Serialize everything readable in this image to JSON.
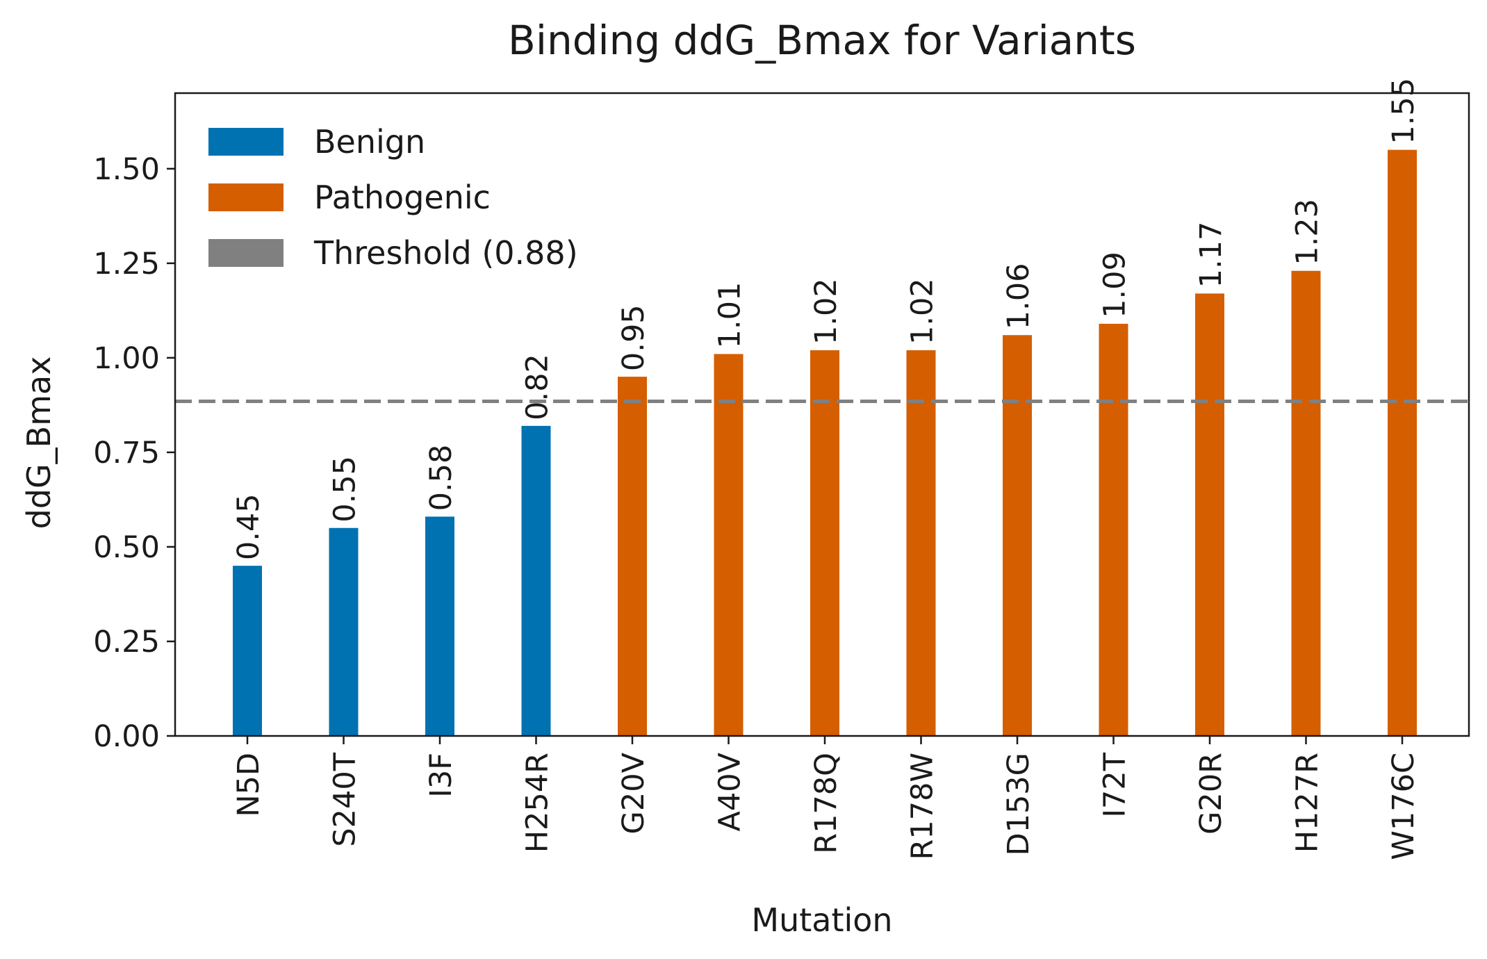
{
  "chart_data": {
    "type": "bar",
    "title": "Binding ddG_Bmax for Variants",
    "xlabel": "Mutation",
    "ylabel": "ddG_Bmax",
    "ylim": [
      0,
      1.7
    ],
    "yticks": [
      "0.00",
      "0.25",
      "0.50",
      "0.75",
      "1.00",
      "1.25",
      "1.50"
    ],
    "categories": [
      "N5D",
      "S240T",
      "I3F",
      "H254R",
      "G20V",
      "A40V",
      "R178Q",
      "R178W",
      "D153G",
      "I72T",
      "G20R",
      "H127R",
      "W176C"
    ],
    "values": [
      0.45,
      0.55,
      0.58,
      0.82,
      0.95,
      1.01,
      1.02,
      1.02,
      1.06,
      1.09,
      1.17,
      1.23,
      1.55
    ],
    "value_labels": [
      "0.45",
      "0.55",
      "0.58",
      "0.82",
      "0.95",
      "1.01",
      "1.02",
      "1.02",
      "1.06",
      "1.09",
      "1.17",
      "1.23",
      "1.55"
    ],
    "classes": [
      "Benign",
      "Benign",
      "Benign",
      "Benign",
      "Pathogenic",
      "Pathogenic",
      "Pathogenic",
      "Pathogenic",
      "Pathogenic",
      "Pathogenic",
      "Pathogenic",
      "Pathogenic",
      "Pathogenic"
    ],
    "threshold": 0.885,
    "legend": {
      "placement": "top-left",
      "entries": [
        {
          "label": "Benign",
          "color": "#0072b2"
        },
        {
          "label": "Pathogenic",
          "color": "#d55e00"
        },
        {
          "label": "Threshold (0.88)",
          "color": "#808080"
        }
      ]
    },
    "colors": {
      "Benign": "#0072b2",
      "Pathogenic": "#d55e00",
      "threshold": "#808080"
    },
    "grid": false
  }
}
